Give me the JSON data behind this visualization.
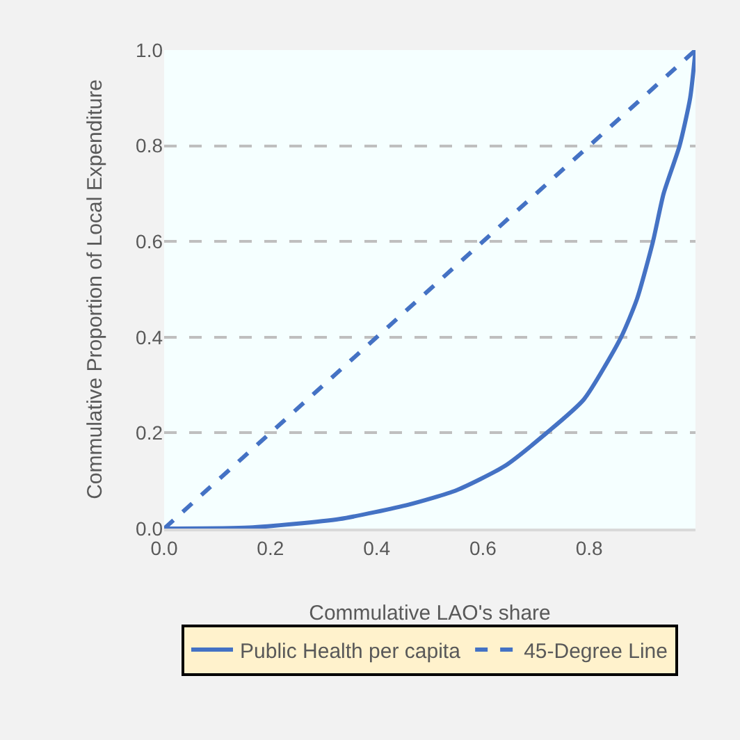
{
  "chart_data": {
    "type": "line",
    "xlabel": "Commulative LAO's share",
    "ylabel": "Commulative Proportion of Local Expenditure",
    "series": [
      {
        "name": "Public Health per capita",
        "color": "#4472c4",
        "line_style": "solid",
        "x": [
          0,
          0.16,
          0.33,
          0.46,
          0.55,
          0.64,
          0.72,
          0.79,
          0.86,
          0.89,
          0.92,
          0.94,
          0.97,
          0.99,
          1
        ],
        "values": [
          0,
          0.002,
          0.02,
          0.05,
          0.08,
          0.13,
          0.2,
          0.27,
          0.4,
          0.48,
          0.6,
          0.7,
          0.8,
          0.9,
          1
        ]
      },
      {
        "name": "45-Degree Line",
        "color": "#4472c4",
        "line_style": "dashed",
        "x": [
          0,
          1
        ],
        "values": [
          0,
          1
        ]
      }
    ],
    "xlim": [
      0,
      1
    ],
    "xticks": [
      {
        "value": 0,
        "label": "0.0"
      },
      0.2,
      0.4,
      0.6,
      0.8
    ],
    "ylim": [
      0,
      1
    ],
    "yticks": [
      {
        "value": 0,
        "label": "0.0"
      },
      0.2,
      0.4,
      0.6,
      0.8,
      {
        "value": 1,
        "label": "1.0"
      }
    ],
    "grid": "y",
    "legend": "bottom",
    "marker": "none"
  }
}
